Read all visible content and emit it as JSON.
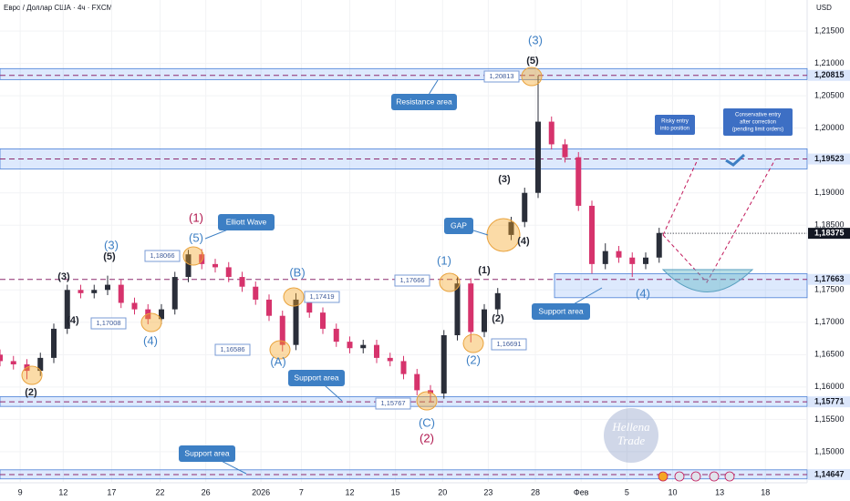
{
  "chart_data": {
    "type": "candlestick",
    "title": "Евро / Доллар США · 4ч · FXCM",
    "currency": "USD",
    "xlim": [
      0,
      60
    ],
    "ylim": [
      1.1452,
      1.2198
    ],
    "xticks": [
      {
        "value": 1.5,
        "label": "9"
      },
      {
        "value": 4.7,
        "label": "12"
      },
      {
        "value": 8.3,
        "label": "17"
      },
      {
        "value": 11.9,
        "label": "22"
      },
      {
        "value": 15.3,
        "label": "26"
      },
      {
        "value": 19.4,
        "label": "2026"
      },
      {
        "value": 22.4,
        "label": "7"
      },
      {
        "value": 26,
        "label": "12"
      },
      {
        "value": 29.4,
        "label": "15"
      },
      {
        "value": 32.9,
        "label": "20"
      },
      {
        "value": 36.3,
        "label": "23"
      },
      {
        "value": 39.8,
        "label": "28"
      },
      {
        "value": 43.2,
        "label": "Фев"
      },
      {
        "value": 46.6,
        "label": "5"
      },
      {
        "value": 50,
        "label": "10"
      },
      {
        "value": 53.5,
        "label": "13"
      },
      {
        "value": 56.9,
        "label": "18"
      }
    ],
    "yticks": [
      {
        "value": 1.215,
        "label": "1,21500"
      },
      {
        "value": 1.21,
        "label": "1,21000"
      },
      {
        "value": 1.205,
        "label": "1,20500"
      },
      {
        "value": 1.2,
        "label": "1,20000"
      },
      {
        "value": 1.19,
        "label": "1,19000"
      },
      {
        "value": 1.185,
        "label": "1,18500"
      },
      {
        "value": 1.175,
        "label": "1,17500"
      },
      {
        "value": 1.17,
        "label": "1,17000"
      },
      {
        "value": 1.165,
        "label": "1,16500"
      },
      {
        "value": 1.16,
        "label": "1,16000"
      },
      {
        "value": 1.155,
        "label": "1,15500"
      },
      {
        "value": 1.15,
        "label": "1,15000"
      }
    ],
    "up_color": "#2a2e39",
    "down_color": "#d6336c",
    "x": [
      0,
      1,
      2,
      3,
      4,
      5,
      6,
      7,
      8,
      9,
      10,
      11,
      12,
      13,
      14,
      15,
      16,
      17,
      18,
      19,
      20,
      21,
      22,
      23,
      24,
      25,
      26,
      27,
      28,
      29,
      30,
      31,
      32,
      33,
      34,
      35,
      36,
      37,
      38,
      39,
      40,
      41,
      42,
      43,
      44,
      45,
      46,
      47,
      48,
      49
    ],
    "open": [
      1.165,
      1.164,
      1.1635,
      1.1625,
      1.1645,
      1.169,
      1.175,
      1.1745,
      1.175,
      1.1758,
      1.173,
      1.172,
      1.1705,
      1.172,
      1.177,
      1.1805,
      1.179,
      1.1785,
      1.177,
      1.1755,
      1.1735,
      1.171,
      1.1665,
      1.1735,
      1.1715,
      1.169,
      1.167,
      1.166,
      1.1665,
      1.1645,
      1.164,
      1.162,
      1.1595,
      1.159,
      1.168,
      1.176,
      1.1685,
      1.172,
      1.1835,
      1.1855,
      1.19,
      1.201,
      1.1975,
      1.1955,
      1.188,
      1.179,
      1.181,
      1.18,
      1.179,
      1.18
    ],
    "high": [
      1.1658,
      1.1648,
      1.1643,
      1.1653,
      1.1698,
      1.1758,
      1.1758,
      1.1758,
      1.1772,
      1.1766,
      1.1738,
      1.1728,
      1.1728,
      1.1778,
      1.1812,
      1.1813,
      1.1798,
      1.1793,
      1.1778,
      1.1763,
      1.1743,
      1.1718,
      1.1745,
      1.1743,
      1.1723,
      1.1698,
      1.1678,
      1.1673,
      1.1673,
      1.1653,
      1.1648,
      1.1628,
      1.1603,
      1.1688,
      1.177,
      1.1768,
      1.1728,
      1.1753,
      1.1863,
      1.1908,
      1.2081,
      1.2018,
      1.1983,
      1.1963,
      1.1888,
      1.1822,
      1.1818,
      1.1808,
      1.1808,
      1.1846
    ],
    "low": [
      1.1632,
      1.1627,
      1.1612,
      1.1617,
      1.1637,
      1.1682,
      1.1737,
      1.1737,
      1.1742,
      1.1722,
      1.1712,
      1.1697,
      1.1697,
      1.1712,
      1.1762,
      1.1782,
      1.1777,
      1.1762,
      1.1747,
      1.1727,
      1.1702,
      1.1655,
      1.1657,
      1.1707,
      1.1682,
      1.1662,
      1.1652,
      1.1652,
      1.1637,
      1.1632,
      1.1612,
      1.1587,
      1.1577,
      1.1582,
      1.1672,
      1.1669,
      1.1677,
      1.1712,
      1.1827,
      1.1847,
      1.1892,
      1.1967,
      1.1947,
      1.1872,
      1.1775,
      1.1782,
      1.1792,
      1.177,
      1.1782,
      1.1792
    ],
    "close": [
      1.164,
      1.1635,
      1.1625,
      1.1645,
      1.169,
      1.175,
      1.1745,
      1.175,
      1.1758,
      1.173,
      1.172,
      1.1705,
      1.172,
      1.177,
      1.1805,
      1.179,
      1.1785,
      1.177,
      1.1755,
      1.1735,
      1.171,
      1.1665,
      1.1735,
      1.1715,
      1.169,
      1.167,
      1.166,
      1.1665,
      1.1645,
      1.164,
      1.162,
      1.1595,
      1.159,
      1.168,
      1.176,
      1.1685,
      1.172,
      1.1745,
      1.1855,
      1.19,
      1.201,
      1.1975,
      1.1955,
      1.188,
      1.179,
      1.181,
      1.18,
      1.179,
      1.18,
      1.1838
    ],
    "zones": [
      {
        "from": 1.2075,
        "to": 1.2092
      },
      {
        "from": 1.1937,
        "to": 1.1968
      },
      {
        "from": 1.1738,
        "to": 1.1775
      },
      {
        "from": 1.157,
        "to": 1.1585
      },
      {
        "from": 1.1458,
        "to": 1.1472
      }
    ],
    "levels": [
      {
        "value": 1.20815,
        "label": "1,20815"
      },
      {
        "value": 1.19523,
        "label": "1,19523"
      },
      {
        "value": 1.17663,
        "label": "1,17663"
      },
      {
        "value": 1.15771,
        "label": "1,15771"
      },
      {
        "value": 1.14647,
        "label": "1,14647"
      }
    ],
    "last_price": {
      "value": 1.18375,
      "label": "1,18375"
    },
    "price_tags": [
      {
        "value": 1.20813,
        "label": "1,20813"
      },
      {
        "value": 1.18066,
        "label": "1,18066"
      },
      {
        "value": 1.17419,
        "label": "1,17419"
      },
      {
        "value": 1.17008,
        "label": "1,17008"
      },
      {
        "value": 1.16586,
        "label": "1,16586"
      },
      {
        "value": 1.17666,
        "label": "1,17666"
      },
      {
        "value": 1.16691,
        "label": "1,16691"
      },
      {
        "value": 1.15767,
        "label": "1,15767"
      }
    ],
    "wave_labels": [
      {
        "text": "(3)",
        "color": "#3d7fc4"
      },
      {
        "text": "(5)",
        "color": "#1e222d"
      },
      {
        "text": "(1)",
        "color": "#b0174e"
      },
      {
        "text": "(5)",
        "color": "#3d7fc4"
      },
      {
        "text": "(3)",
        "color": "#3d7fc4"
      },
      {
        "text": "(5)",
        "color": "#1e222d"
      },
      {
        "text": "(3)",
        "color": "#1e222d"
      },
      {
        "text": "(4)",
        "color": "#1e222d"
      },
      {
        "text": "(4)",
        "color": "#3d7fc4"
      },
      {
        "text": "(2)",
        "color": "#1e222d"
      },
      {
        "text": "(B)",
        "color": "#3d7fc4"
      },
      {
        "text": "(A)",
        "color": "#3d7fc4"
      },
      {
        "text": "(C)",
        "color": "#3d7fc4"
      },
      {
        "text": "(2)",
        "color": "#b0174e"
      },
      {
        "text": "(1)",
        "color": "#3d7fc4"
      },
      {
        "text": "(1)",
        "color": "#1e222d"
      },
      {
        "text": "(2)",
        "color": "#1e222d"
      },
      {
        "text": "(2)",
        "color": "#3d7fc4"
      },
      {
        "text": "(3)",
        "color": "#1e222d"
      },
      {
        "text": "(4)",
        "color": "#1e222d"
      },
      {
        "text": "(4)",
        "color": "#3d7fc4"
      }
    ],
    "callouts": [
      "Resistance area",
      "Elliott Wave",
      "GAP",
      "Support area",
      "Support area",
      "Support area"
    ],
    "notes": [
      [
        "Risky entry",
        "into position"
      ],
      [
        "Conservative entry",
        "after correction",
        "(pending limit orders)"
      ]
    ],
    "watermark": [
      "Hellena",
      "Trade"
    ]
  }
}
